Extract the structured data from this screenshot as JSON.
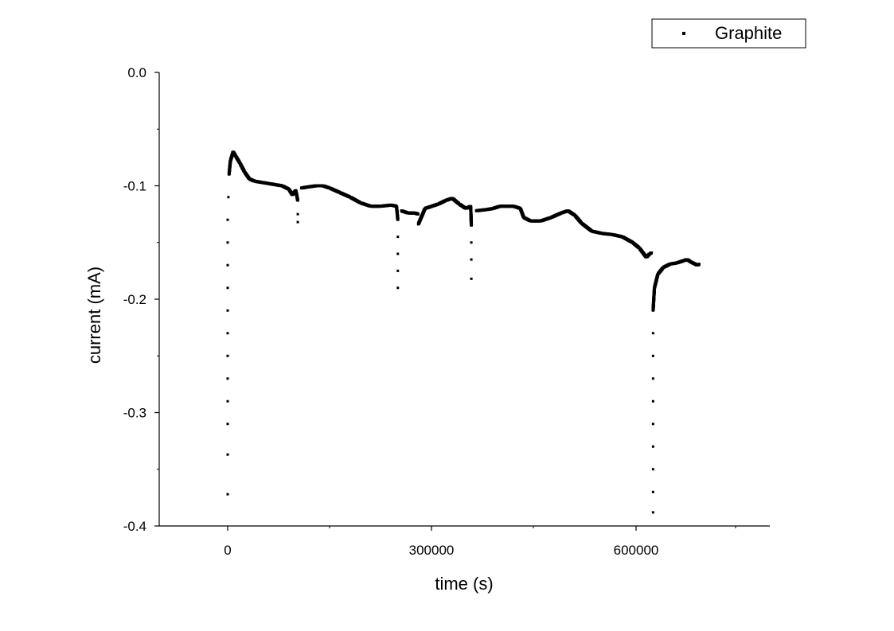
{
  "chart_data": {
    "type": "scatter",
    "title": "",
    "xlabel": "time (s)",
    "ylabel": "current (mA)",
    "xlim": [
      -100000,
      800000
    ],
    "ylim": [
      -0.4,
      0.0
    ],
    "x_ticks": [
      0,
      300000,
      600000
    ],
    "x_tick_labels": [
      "0",
      "300000",
      "600000"
    ],
    "y_ticks": [
      0.0,
      -0.1,
      -0.2,
      -0.3,
      -0.4
    ],
    "y_tick_labels": [
      "0.0",
      "-0.1",
      "-0.2",
      "-0.3",
      "-0.4"
    ],
    "grid": false,
    "legend": {
      "position": "top-right",
      "entries": [
        "Graphite"
      ]
    },
    "series": [
      {
        "name": "Graphite",
        "marker": "square-dot",
        "color": "#000000",
        "points": [
          [
            0,
            -0.372
          ],
          [
            0,
            -0.337
          ],
          [
            0,
            -0.31
          ],
          [
            0,
            -0.29
          ],
          [
            0,
            -0.27
          ],
          [
            0,
            -0.25
          ],
          [
            0,
            -0.23
          ],
          [
            0,
            -0.21
          ],
          [
            0,
            -0.19
          ],
          [
            0,
            -0.17
          ],
          [
            0,
            -0.15
          ],
          [
            0,
            -0.13
          ],
          [
            1000,
            -0.11
          ],
          [
            2000,
            -0.09
          ],
          [
            4000,
            -0.078
          ],
          [
            8000,
            -0.07
          ],
          [
            12000,
            -0.074
          ],
          [
            18000,
            -0.08
          ],
          [
            25000,
            -0.088
          ],
          [
            32000,
            -0.094
          ],
          [
            40000,
            -0.096
          ],
          [
            50000,
            -0.097
          ],
          [
            60000,
            -0.098
          ],
          [
            70000,
            -0.099
          ],
          [
            80000,
            -0.1
          ],
          [
            90000,
            -0.103
          ],
          [
            95000,
            -0.108
          ],
          [
            100000,
            -0.104
          ],
          [
            103000,
            -0.113
          ],
          [
            103000,
            -0.125
          ],
          [
            103000,
            -0.132
          ],
          [
            108000,
            -0.102
          ],
          [
            118000,
            -0.101
          ],
          [
            130000,
            -0.1
          ],
          [
            140000,
            -0.1
          ],
          [
            150000,
            -0.102
          ],
          [
            165000,
            -0.106
          ],
          [
            180000,
            -0.11
          ],
          [
            195000,
            -0.115
          ],
          [
            210000,
            -0.118
          ],
          [
            225000,
            -0.118
          ],
          [
            240000,
            -0.117
          ],
          [
            248000,
            -0.118
          ],
          [
            250000,
            -0.13
          ],
          [
            250000,
            -0.145
          ],
          [
            250000,
            -0.16
          ],
          [
            250000,
            -0.175
          ],
          [
            250000,
            -0.19
          ],
          [
            255000,
            -0.122
          ],
          [
            265000,
            -0.124
          ],
          [
            275000,
            -0.124
          ],
          [
            280000,
            -0.125
          ],
          [
            280000,
            -0.134
          ],
          [
            290000,
            -0.12
          ],
          [
            300000,
            -0.118
          ],
          [
            310000,
            -0.116
          ],
          [
            320000,
            -0.113
          ],
          [
            330000,
            -0.111
          ],
          [
            340000,
            -0.116
          ],
          [
            350000,
            -0.12
          ],
          [
            357000,
            -0.118
          ],
          [
            358000,
            -0.135
          ],
          [
            358000,
            -0.15
          ],
          [
            358000,
            -0.165
          ],
          [
            358000,
            -0.182
          ],
          [
            365000,
            -0.122
          ],
          [
            380000,
            -0.121
          ],
          [
            390000,
            -0.12
          ],
          [
            400000,
            -0.118
          ],
          [
            420000,
            -0.118
          ],
          [
            430000,
            -0.12
          ],
          [
            435000,
            -0.128
          ],
          [
            445000,
            -0.131
          ],
          [
            460000,
            -0.131
          ],
          [
            475000,
            -0.128
          ],
          [
            490000,
            -0.124
          ],
          [
            500000,
            -0.122
          ],
          [
            510000,
            -0.126
          ],
          [
            520000,
            -0.133
          ],
          [
            535000,
            -0.14
          ],
          [
            550000,
            -0.142
          ],
          [
            565000,
            -0.143
          ],
          [
            580000,
            -0.145
          ],
          [
            595000,
            -0.15
          ],
          [
            605000,
            -0.155
          ],
          [
            615000,
            -0.163
          ],
          [
            620000,
            -0.16
          ],
          [
            623000,
            -0.159
          ],
          [
            625000,
            -0.388
          ],
          [
            625000,
            -0.37
          ],
          [
            625000,
            -0.35
          ],
          [
            625000,
            -0.33
          ],
          [
            625000,
            -0.31
          ],
          [
            625000,
            -0.29
          ],
          [
            625000,
            -0.27
          ],
          [
            625000,
            -0.25
          ],
          [
            625000,
            -0.23
          ],
          [
            625000,
            -0.21
          ],
          [
            627000,
            -0.19
          ],
          [
            632000,
            -0.178
          ],
          [
            640000,
            -0.172
          ],
          [
            650000,
            -0.169
          ],
          [
            660000,
            -0.168
          ],
          [
            670000,
            -0.166
          ],
          [
            675000,
            -0.165
          ],
          [
            680000,
            -0.167
          ],
          [
            690000,
            -0.17
          ],
          [
            693000,
            -0.169
          ]
        ]
      }
    ]
  }
}
